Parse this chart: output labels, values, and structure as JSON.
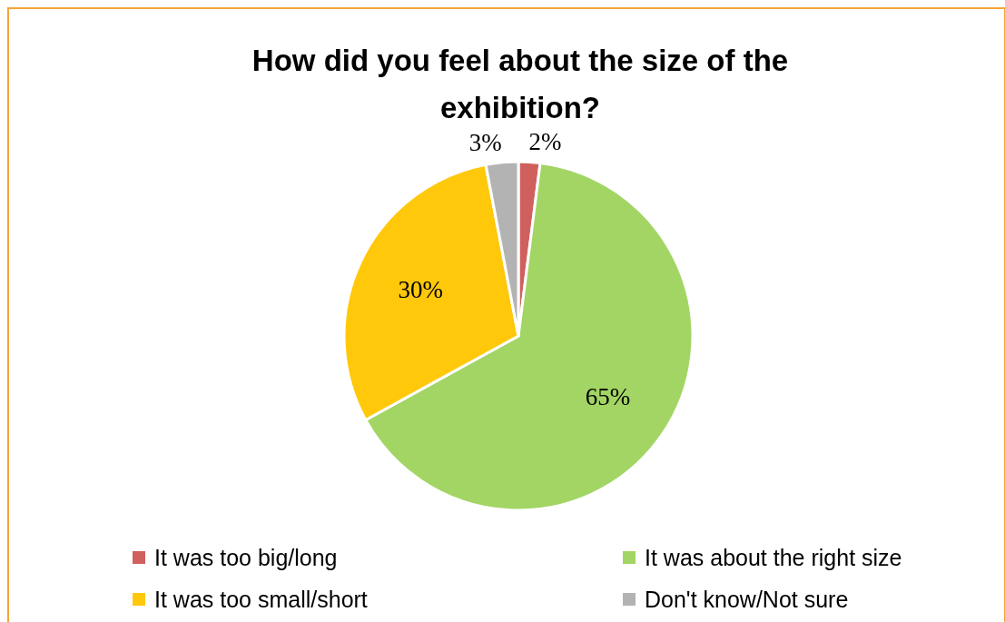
{
  "chart_data": {
    "type": "pie",
    "title": "How did you feel about the size of the exhibition?",
    "categories": [
      "It was too big/long",
      "It was about the right size",
      "It was too small/short",
      "Don't know/Not sure"
    ],
    "values": [
      2,
      65,
      30,
      3
    ],
    "colors": [
      "#d0605e",
      "#a3d565",
      "#ffc80a",
      "#b3b3b3"
    ],
    "value_labels": [
      "2%",
      "65%",
      "30%",
      "3%"
    ],
    "legend": "bottom"
  }
}
